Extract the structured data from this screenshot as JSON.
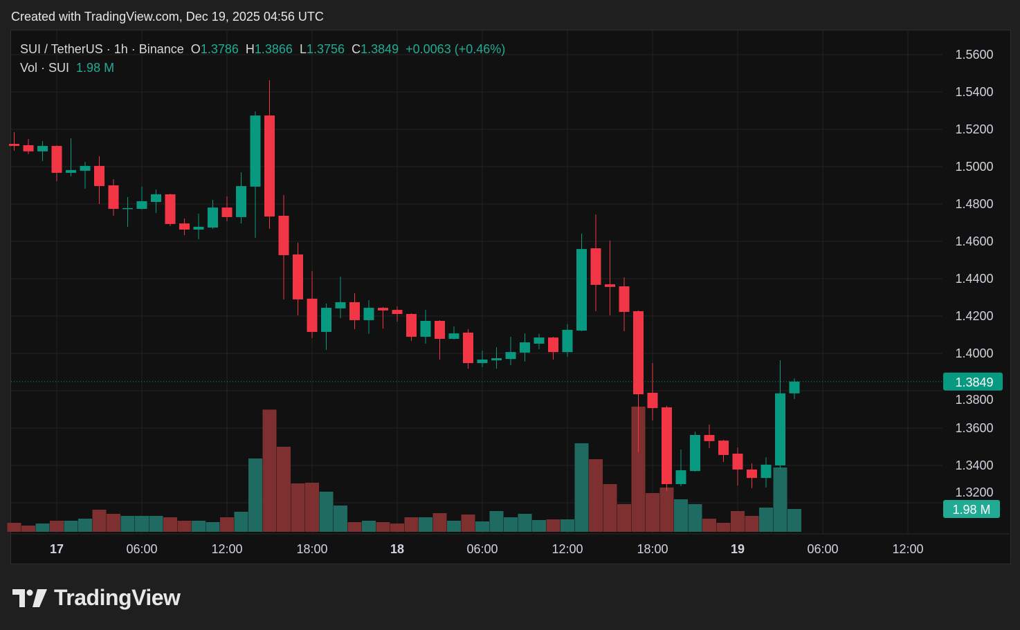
{
  "header": {
    "credit": "Created with TradingView.com, Dec 19, 2025 04:56 UTC"
  },
  "legend": {
    "symbol": "SUI / TetherUS · 1h · Binance",
    "o_label": "O",
    "o": "1.3786",
    "h_label": "H",
    "h": "1.3866",
    "l_label": "L",
    "l": "1.3756",
    "c_label": "C",
    "c": "1.3849",
    "change": "+0.0063 (+0.46%)",
    "vol_label": "Vol · SUI",
    "vol": "1.98 M"
  },
  "branding": {
    "logo_text": "TradingView"
  },
  "colors": {
    "up": "#089981",
    "down": "#f23645",
    "vol_up": "#1f6b61",
    "vol_down": "#7e2f2f",
    "grid": "#242424",
    "text": "#d1d4dc"
  },
  "chart_data": {
    "type": "candlestick",
    "interval": "1h",
    "title": "SUI / TetherUS · 1h · Binance",
    "ylim": [
      1.312,
      1.57
    ],
    "y_ticks": [
      "1.5600",
      "1.5400",
      "1.5200",
      "1.5000",
      "1.4800",
      "1.4600",
      "1.4400",
      "1.4200",
      "1.4000",
      "1.3800",
      "1.3600",
      "1.3400",
      "1.3200"
    ],
    "x_ticks": [
      {
        "label": "17",
        "day": 17,
        "hour": 0,
        "bold": true
      },
      {
        "label": "06:00",
        "day": 17,
        "hour": 6
      },
      {
        "label": "12:00",
        "day": 17,
        "hour": 12
      },
      {
        "label": "18:00",
        "day": 17,
        "hour": 18
      },
      {
        "label": "18",
        "day": 18,
        "hour": 0,
        "bold": true
      },
      {
        "label": "06:00",
        "day": 18,
        "hour": 6
      },
      {
        "label": "12:00",
        "day": 18,
        "hour": 12
      },
      {
        "label": "18:00",
        "day": 18,
        "hour": 18
      },
      {
        "label": "19",
        "day": 19,
        "hour": 0,
        "bold": true
      },
      {
        "label": "06:00",
        "day": 19,
        "hour": 6
      },
      {
        "label": "12:00",
        "day": 19,
        "hour": 12
      }
    ],
    "last_price_label": "1.3849",
    "last_volume_label": "1.98 M",
    "columns": [
      "time",
      "open",
      "high",
      "low",
      "close",
      "volume_M"
    ],
    "candles": [
      [
        "Dec 16 21:00",
        1.5122,
        1.5185,
        1.5085,
        1.5111,
        0.78
      ],
      [
        "Dec 16 22:00",
        1.5115,
        1.5148,
        1.5067,
        1.5082,
        0.54
      ],
      [
        "Dec 16 23:00",
        1.5082,
        1.5137,
        1.503,
        1.5111,
        0.72
      ],
      [
        "Dec 17 00:00",
        1.5111,
        1.5115,
        1.4922,
        1.4967,
        0.96
      ],
      [
        "Dec 17 01:00",
        1.4967,
        1.5152,
        1.4948,
        1.4982,
        0.96
      ],
      [
        "Dec 17 02:00",
        1.4978,
        1.5026,
        1.4882,
        1.5004,
        1.14
      ],
      [
        "Dec 17 03:00",
        1.5004,
        1.5056,
        1.48,
        1.4896,
        1.92
      ],
      [
        "Dec 17 04:00",
        1.49,
        1.4933,
        1.4737,
        1.4774,
        1.56
      ],
      [
        "Dec 17 05:00",
        1.4774,
        1.4837,
        1.4678,
        1.4778,
        1.38
      ],
      [
        "Dec 17 06:00",
        1.4774,
        1.4893,
        1.477,
        1.4815,
        1.38
      ],
      [
        "Dec 17 07:00",
        1.4811,
        1.4878,
        1.4752,
        1.4852,
        1.38
      ],
      [
        "Dec 17 08:00",
        1.4852,
        1.4855,
        1.4682,
        1.4693,
        1.26
      ],
      [
        "Dec 17 09:00",
        1.4696,
        1.4722,
        1.4633,
        1.4663,
        0.96
      ],
      [
        "Dec 17 10:00",
        1.4663,
        1.4748,
        1.4611,
        1.4678,
        0.96
      ],
      [
        "Dec 17 11:00",
        1.4674,
        1.4822,
        1.4667,
        1.4781,
        0.84
      ],
      [
        "Dec 17 12:00",
        1.4781,
        1.4841,
        1.4707,
        1.473,
        1.26
      ],
      [
        "Dec 17 13:00",
        1.473,
        1.497,
        1.4696,
        1.4896,
        1.74
      ],
      [
        "Dec 17 14:00",
        1.4893,
        1.5296,
        1.4619,
        1.5274,
        6.36
      ],
      [
        "Dec 17 15:00",
        1.5274,
        1.5463,
        1.4667,
        1.4733,
        10.6
      ],
      [
        "Dec 17 16:00",
        1.4737,
        1.4848,
        1.4289,
        1.4526,
        7.38
      ],
      [
        "Dec 17 17:00",
        1.453,
        1.4593,
        1.4204,
        1.4289,
        4.2
      ],
      [
        "Dec 17 18:00",
        1.4293,
        1.4441,
        1.4082,
        1.4115,
        4.26
      ],
      [
        "Dec 17 19:00",
        1.4115,
        1.4267,
        1.4019,
        1.4244,
        3.48
      ],
      [
        "Dec 17 20:00",
        1.4241,
        1.4411,
        1.4189,
        1.4274,
        2.28
      ],
      [
        "Dec 17 21:00",
        1.4274,
        1.4322,
        1.413,
        1.4178,
        0.84
      ],
      [
        "Dec 17 22:00",
        1.4178,
        1.4285,
        1.4104,
        1.4244,
        0.96
      ],
      [
        "Dec 17 23:00",
        1.4244,
        1.4248,
        1.4133,
        1.423,
        0.84
      ],
      [
        "Dec 18 00:00",
        1.4233,
        1.4252,
        1.417,
        1.4211,
        0.72
      ],
      [
        "Dec 18 01:00",
        1.4211,
        1.4215,
        1.4067,
        1.4089,
        1.26
      ],
      [
        "Dec 18 02:00",
        1.4089,
        1.4233,
        1.4052,
        1.4174,
        1.26
      ],
      [
        "Dec 18 03:00",
        1.4174,
        1.4178,
        1.3967,
        1.4078,
        1.62
      ],
      [
        "Dec 18 04:00",
        1.4078,
        1.4144,
        1.4074,
        1.4107,
        0.96
      ],
      [
        "Dec 18 05:00",
        1.4111,
        1.413,
        1.3918,
        1.3948,
        1.5
      ],
      [
        "Dec 18 06:00",
        1.3948,
        1.4015,
        1.3926,
        1.3967,
        0.9
      ],
      [
        "Dec 18 07:00",
        1.3963,
        1.4033,
        1.3918,
        1.3974,
        1.8
      ],
      [
        "Dec 18 08:00",
        1.397,
        1.4089,
        1.3937,
        1.4007,
        1.26
      ],
      [
        "Dec 18 09:00",
        1.4004,
        1.4107,
        1.3956,
        1.4059,
        1.56
      ],
      [
        "Dec 18 10:00",
        1.4052,
        1.4104,
        1.4022,
        1.4085,
        1.02
      ],
      [
        "Dec 18 11:00",
        1.4085,
        1.4089,
        1.3967,
        1.4007,
        1.08
      ],
      [
        "Dec 18 12:00",
        1.4007,
        1.4156,
        1.3981,
        1.4126,
        1.08
      ],
      [
        "Dec 18 13:00",
        1.4122,
        1.4641,
        1.4119,
        1.4559,
        7.68
      ],
      [
        "Dec 18 14:00",
        1.4563,
        1.4744,
        1.4226,
        1.4367,
        6.3
      ],
      [
        "Dec 18 15:00",
        1.437,
        1.4604,
        1.4204,
        1.4356,
        4.14
      ],
      [
        "Dec 18 16:00",
        1.4359,
        1.4407,
        1.4119,
        1.4222,
        2.4
      ],
      [
        "Dec 18 17:00",
        1.4226,
        1.423,
        1.347,
        1.3781,
        10.86
      ],
      [
        "Dec 18 18:00",
        1.3789,
        1.3948,
        1.3641,
        1.3707,
        3.36
      ],
      [
        "Dec 18 19:00",
        1.3711,
        1.3719,
        1.3263,
        1.33,
        3.84
      ],
      [
        "Dec 18 20:00",
        1.33,
        1.3485,
        1.3289,
        1.3374,
        2.82
      ],
      [
        "Dec 18 21:00",
        1.337,
        1.3581,
        1.3367,
        1.3563,
        2.4
      ],
      [
        "Dec 18 22:00",
        1.3563,
        1.3619,
        1.3493,
        1.353,
        1.14
      ],
      [
        "Dec 18 23:00",
        1.3533,
        1.3537,
        1.3419,
        1.3456,
        0.78
      ],
      [
        "Dec 19 00:00",
        1.3463,
        1.3496,
        1.3293,
        1.3378,
        1.8
      ],
      [
        "Dec 19 01:00",
        1.3378,
        1.3411,
        1.3278,
        1.3333,
        1.38
      ],
      [
        "Dec 19 02:00",
        1.3333,
        1.3444,
        1.3282,
        1.3404,
        2.1
      ],
      [
        "Dec 19 03:00",
        1.34,
        1.3963,
        1.3382,
        1.3786,
        5.58
      ],
      [
        "Dec 19 04:00",
        1.3786,
        1.3866,
        1.3756,
        1.3849,
        1.98
      ]
    ]
  }
}
